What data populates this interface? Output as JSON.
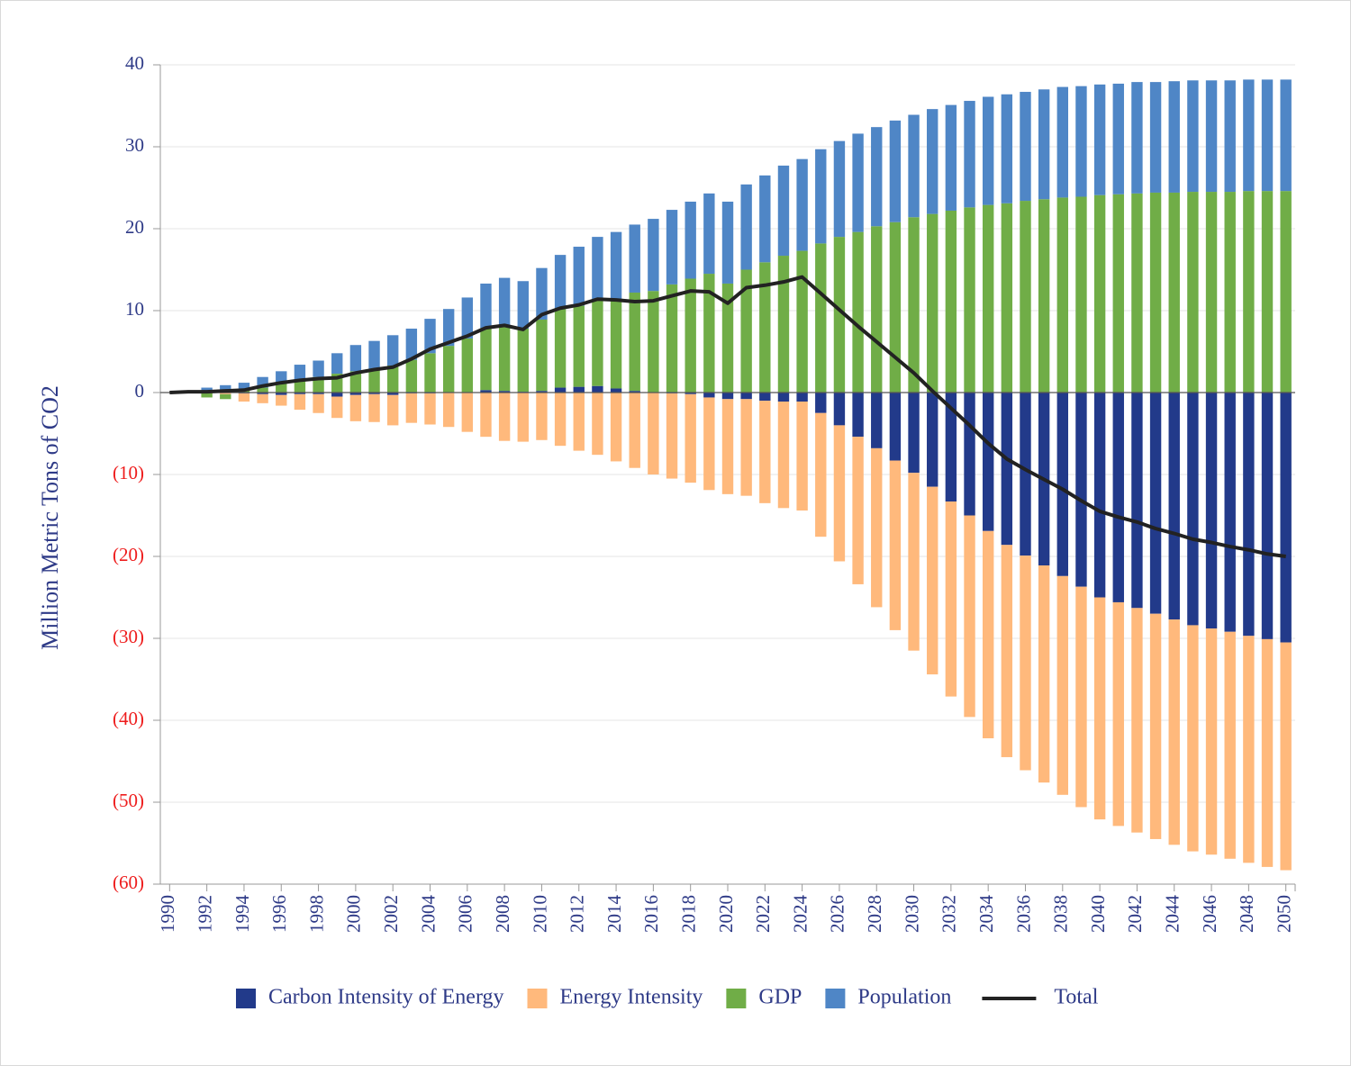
{
  "chart_data": {
    "type": "bar",
    "stacked": true,
    "y_label": "Million Metric Tons of CO2",
    "x": [
      1990,
      1991,
      1992,
      1993,
      1994,
      1995,
      1996,
      1997,
      1998,
      1999,
      2000,
      2001,
      2002,
      2003,
      2004,
      2005,
      2006,
      2007,
      2008,
      2009,
      2010,
      2011,
      2012,
      2013,
      2014,
      2015,
      2016,
      2017,
      2018,
      2019,
      2020,
      2021,
      2022,
      2023,
      2024,
      2025,
      2026,
      2027,
      2028,
      2029,
      2030,
      2031,
      2032,
      2033,
      2034,
      2035,
      2036,
      2037,
      2038,
      2039,
      2040,
      2041,
      2042,
      2043,
      2044,
      2045,
      2046,
      2047,
      2048,
      2049,
      2050
    ],
    "xlim": [
      1989.5,
      2050.5
    ],
    "xticks": [
      1990,
      1992,
      1994,
      1996,
      1998,
      2000,
      2002,
      2004,
      2006,
      2008,
      2010,
      2012,
      2014,
      2016,
      2018,
      2020,
      2022,
      2024,
      2026,
      2028,
      2030,
      2032,
      2034,
      2036,
      2038,
      2040,
      2042,
      2044,
      2046,
      2048,
      2050
    ],
    "ylim": [
      -60,
      40
    ],
    "yticks": [
      {
        "value": -60,
        "label": "(60)"
      },
      {
        "value": -50,
        "label": "(50)"
      },
      {
        "value": -40,
        "label": "(40)"
      },
      {
        "value": -30,
        "label": "(30)"
      },
      {
        "value": -20,
        "label": "(20)"
      },
      {
        "value": -10,
        "label": "(10)"
      },
      0,
      10,
      20,
      30,
      40
    ],
    "tick_color": "#2e3a87",
    "negative_tick_color": "#ee1c1c",
    "grid": true,
    "legend": "bottom",
    "series": [
      {
        "name": "Carbon Intensity of Energy",
        "color": "#223a8a",
        "values": [
          0,
          0,
          0,
          0.1,
          -0.1,
          -0.2,
          -0.3,
          -0.2,
          -0.2,
          -0.5,
          -0.3,
          -0.2,
          -0.3,
          -0.1,
          -0.1,
          0,
          0,
          0.3,
          0.2,
          0.1,
          0.2,
          0.6,
          0.7,
          0.8,
          0.5,
          0.2,
          0,
          -0.1,
          -0.2,
          -0.6,
          -0.8,
          -0.8,
          -1.0,
          -1.1,
          -1.1,
          -2.5,
          -4.0,
          -5.4,
          -6.8,
          -8.3,
          -9.8,
          -11.5,
          -13.3,
          -15.0,
          -16.9,
          -18.6,
          -19.9,
          -21.1,
          -22.4,
          -23.7,
          -25.0,
          -25.6,
          -26.3,
          -27.0,
          -27.7,
          -28.4,
          -28.8,
          -29.2,
          -29.7,
          -30.1,
          -30.5
        ]
      },
      {
        "name": "Energy Intensity",
        "color": "#ffb97c",
        "values": [
          0,
          -0.1,
          -0.1,
          -0.2,
          -1.0,
          -1.1,
          -1.3,
          -1.9,
          -2.3,
          -2.6,
          -3.2,
          -3.4,
          -3.7,
          -3.6,
          -3.8,
          -4.2,
          -4.8,
          -5.4,
          -5.9,
          -6.0,
          -5.8,
          -6.5,
          -7.1,
          -7.6,
          -8.4,
          -9.2,
          -10.0,
          -10.4,
          -10.8,
          -11.3,
          -11.6,
          -11.8,
          -12.5,
          -13.0,
          -13.3,
          -15.1,
          -16.6,
          -18.0,
          -19.4,
          -20.7,
          -21.7,
          -22.9,
          -23.8,
          -24.6,
          -25.3,
          -25.9,
          -26.2,
          -26.5,
          -26.7,
          -26.9,
          -27.1,
          -27.3,
          -27.4,
          -27.5,
          -27.5,
          -27.6,
          -27.6,
          -27.7,
          -27.7,
          -27.8,
          -27.8
        ]
      },
      {
        "name": "GDP",
        "color": "#70ad47",
        "values": [
          0,
          0.1,
          -0.5,
          -0.6,
          0.4,
          0.6,
          1.3,
          1.6,
          1.9,
          2.3,
          2.6,
          2.9,
          3.3,
          4.0,
          4.8,
          5.7,
          6.6,
          7.6,
          8.0,
          7.7,
          8.7,
          9.6,
          9.9,
          10.5,
          10.9,
          12.0,
          12.4,
          13.2,
          13.9,
          14.5,
          13.3,
          15.0,
          15.9,
          16.7,
          17.3,
          18.2,
          19.0,
          19.6,
          20.3,
          20.8,
          21.4,
          21.8,
          22.2,
          22.6,
          22.9,
          23.1,
          23.4,
          23.6,
          23.8,
          23.9,
          24.1,
          24.2,
          24.3,
          24.4,
          24.4,
          24.5,
          24.5,
          24.5,
          24.6,
          24.6,
          24.6
        ]
      },
      {
        "name": "Population",
        "color": "#4f86c6",
        "values": [
          0,
          0,
          0.6,
          0.8,
          0.8,
          1.3,
          1.3,
          1.8,
          2.0,
          2.5,
          3.2,
          3.4,
          3.7,
          3.8,
          4.2,
          4.5,
          5.0,
          5.4,
          5.8,
          5.8,
          6.3,
          6.6,
          7.2,
          7.7,
          8.2,
          8.3,
          8.8,
          9.1,
          9.4,
          9.8,
          10.0,
          10.4,
          10.6,
          11.0,
          11.2,
          11.5,
          11.7,
          12.0,
          12.1,
          12.4,
          12.5,
          12.8,
          12.9,
          13.0,
          13.2,
          13.3,
          13.3,
          13.4,
          13.5,
          13.5,
          13.5,
          13.5,
          13.6,
          13.5,
          13.6,
          13.6,
          13.6,
          13.6,
          13.6,
          13.6,
          13.6
        ]
      },
      {
        "name": "Total",
        "type": "line",
        "color": "#222222",
        "values": [
          0,
          0.1,
          0.1,
          0.2,
          0.3,
          0.8,
          1.2,
          1.5,
          1.7,
          1.8,
          2.4,
          2.8,
          3.1,
          4.1,
          5.3,
          6.1,
          6.9,
          7.9,
          8.2,
          7.7,
          9.5,
          10.3,
          10.7,
          11.4,
          11.3,
          11.1,
          11.2,
          11.8,
          12.4,
          12.3,
          10.9,
          12.8,
          13.1,
          13.5,
          14.1,
          12.1,
          10.1,
          8.1,
          6.2,
          4.3,
          2.4,
          0.2,
          -1.9,
          -4.0,
          -6.2,
          -8.1,
          -9.4,
          -10.6,
          -11.8,
          -13.2,
          -14.5,
          -15.2,
          -15.8,
          -16.6,
          -17.2,
          -17.9,
          -18.3,
          -18.8,
          -19.2,
          -19.7,
          -20.0
        ]
      }
    ]
  }
}
